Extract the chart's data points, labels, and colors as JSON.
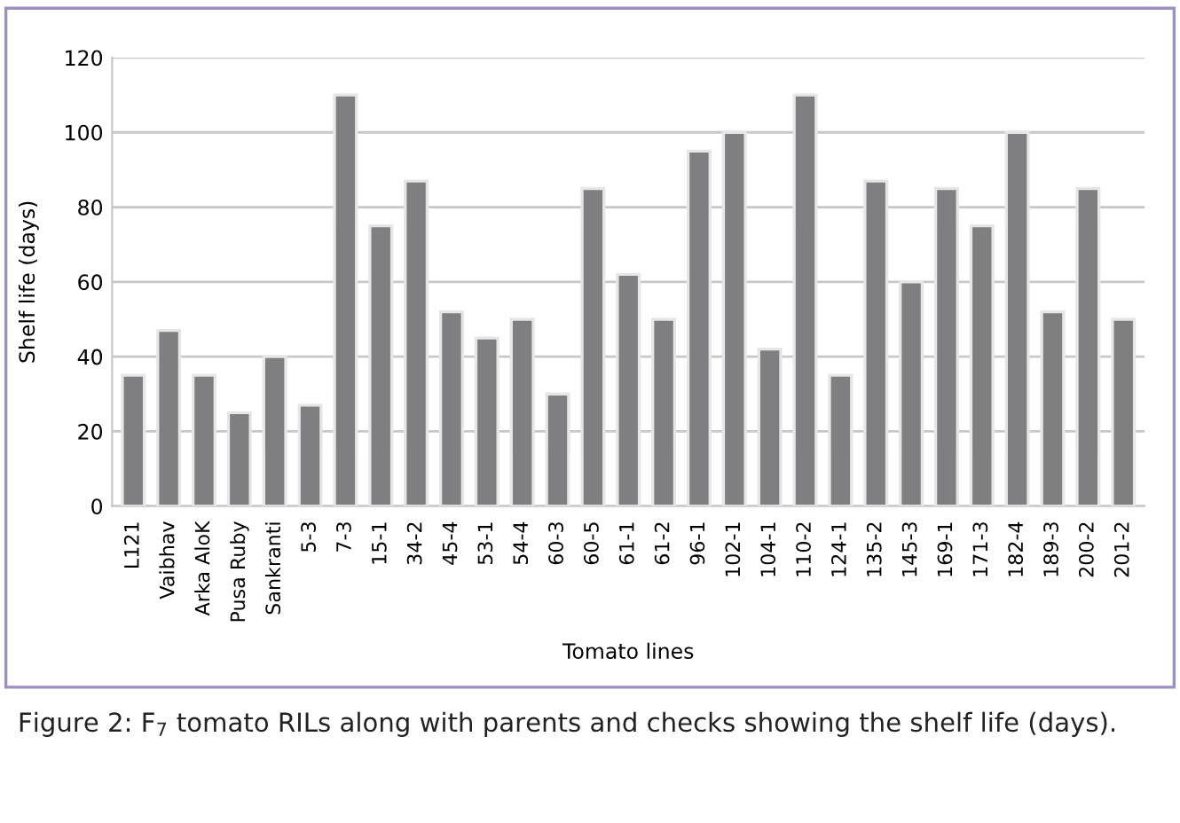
{
  "chart_data": {
    "type": "bar",
    "xlabel": "Tomato lines",
    "ylabel": "Shelf life (days)",
    "categories": [
      "L121",
      "Vaibhav",
      "Arka AloK",
      "Pusa Ruby",
      "Sankranti",
      "5-3",
      "7-3",
      "15-1",
      "34-2",
      "45-4",
      "53-1",
      "54-4",
      "60-3",
      "60-5",
      "61-1",
      "61-2",
      "96-1",
      "102-1",
      "104-1",
      "110-2",
      "124-1",
      "135-2",
      "145-3",
      "169-1",
      "171-3",
      "182-4",
      "189-3",
      "200-2",
      "201-2"
    ],
    "values": [
      35,
      47,
      35,
      25,
      40,
      27,
      110,
      75,
      87,
      52,
      45,
      50,
      30,
      85,
      62,
      50,
      95,
      100,
      42,
      110,
      35,
      87,
      60,
      85,
      75,
      100,
      52,
      85,
      50
    ],
    "color": "#7f7f82",
    "ylim": [
      0,
      120
    ],
    "yticks": [
      0,
      20,
      40,
      60,
      80,
      100,
      120
    ],
    "grid": "y",
    "annotations": [
      "Figure 2: F$_{7}$ tomato RILs along with parents and checks showing the shelf life (days)."
    ]
  }
}
